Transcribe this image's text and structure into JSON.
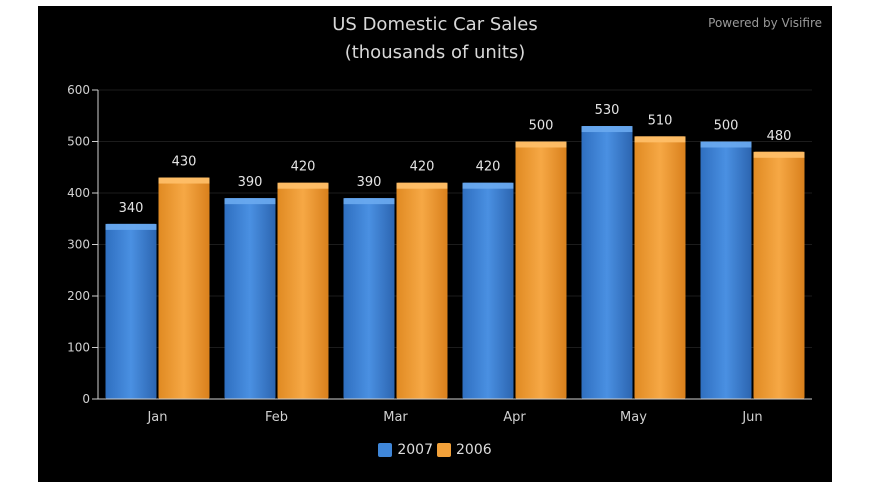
{
  "chart_data": {
    "type": "bar",
    "title": "US Domestic Car Sales",
    "subtitle": "(thousands of units)",
    "categories": [
      "Jan",
      "Feb",
      "Mar",
      "Apr",
      "May",
      "Jun"
    ],
    "series": [
      {
        "name": "2007",
        "values": [
          340,
          390,
          390,
          420,
          530,
          500
        ],
        "color": "#3f86d8"
      },
      {
        "name": "2006",
        "values": [
          430,
          420,
          420,
          500,
          510,
          480
        ],
        "color": "#f2a13a"
      }
    ],
    "ylim": [
      0,
      600
    ],
    "yticks": [
      0,
      100,
      200,
      300,
      400,
      500,
      600
    ],
    "xlabel": "",
    "ylabel": "",
    "legend_position": "bottom-center",
    "grid": true
  },
  "branding": {
    "powered_by": "Powered by Visifire"
  },
  "colors": {
    "background": "#000000",
    "axis": "#cfcfcf",
    "text": "#d8d8d8"
  }
}
